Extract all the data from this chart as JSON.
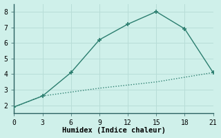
{
  "x": [
    0,
    3,
    6,
    9,
    12,
    15,
    18,
    21
  ],
  "y_upper": [
    1.9,
    2.6,
    4.1,
    6.2,
    7.2,
    8.0,
    6.9,
    4.1
  ],
  "y_lower": [
    1.9,
    2.6,
    2.85,
    3.1,
    3.3,
    3.5,
    3.8,
    4.1
  ],
  "line_color": "#2a7d6e",
  "bg_color": "#cff0ea",
  "grid_color": "#b8ddd7",
  "axis_color": "#2a6060",
  "xlabel": "Humidex (Indice chaleur)",
  "xlim": [
    0,
    21
  ],
  "ylim": [
    1.5,
    8.5
  ],
  "xticks": [
    0,
    3,
    6,
    9,
    12,
    15,
    18,
    21
  ],
  "yticks": [
    2,
    3,
    4,
    5,
    6,
    7,
    8
  ],
  "marker": "+",
  "markersize": 5,
  "markeredgewidth": 1.2,
  "linewidth": 1.0,
  "xlabel_fontsize": 7.5,
  "tick_fontsize": 7,
  "font_family": "monospace"
}
